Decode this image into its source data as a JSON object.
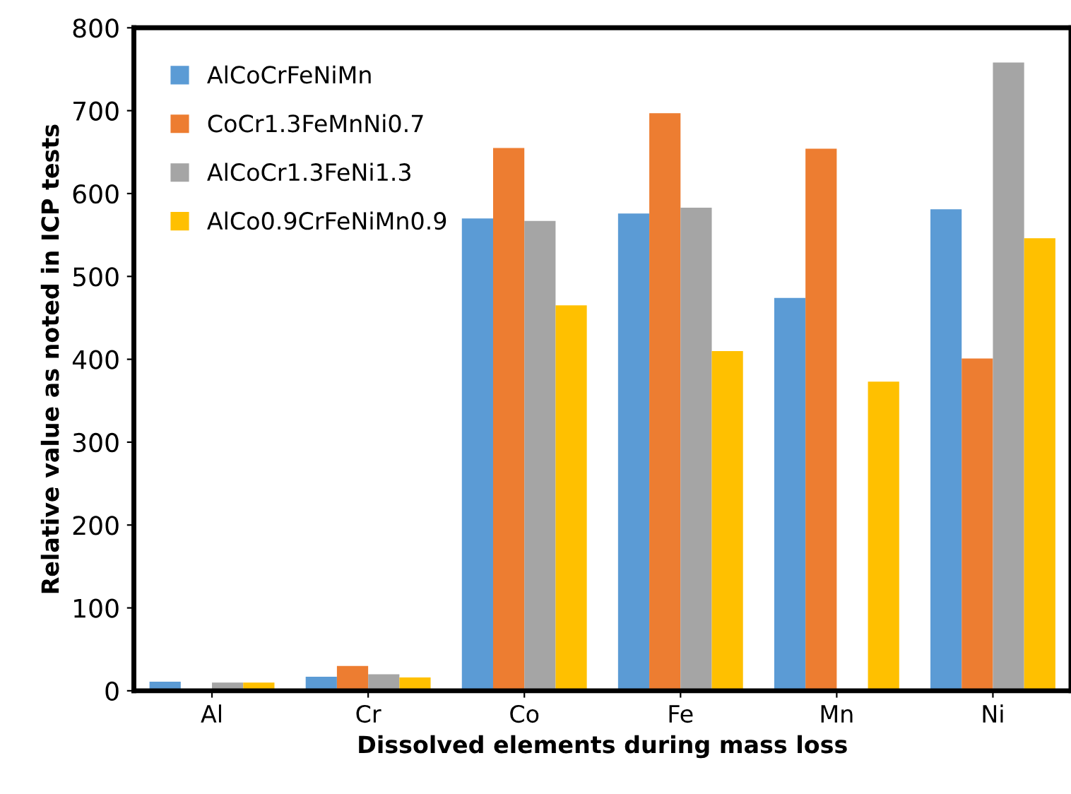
{
  "chart_data": {
    "type": "bar",
    "xlabel": "Dissolved elements during mass loss",
    "ylabel": "Relative value as noted in ICP tests",
    "categories": [
      "Al",
      "Cr",
      "Co",
      "Fe",
      "Mn",
      "Ni"
    ],
    "series": [
      {
        "name": "AlCoCrFeNiMn",
        "color": "#5b9bd5",
        "values": [
          11,
          17,
          570,
          576,
          474,
          581
        ]
      },
      {
        "name": "CoCr1.3FeMnNi0.7",
        "color": "#ed7d31",
        "values": [
          0,
          30,
          655,
          697,
          654,
          401
        ]
      },
      {
        "name": "AlCoCr1.3FeNi1.3",
        "color": "#a5a5a5",
        "values": [
          10,
          20,
          567,
          583,
          0,
          758
        ]
      },
      {
        "name": "AlCo0.9CrFeNiMn0.9",
        "color": "#ffc000",
        "values": [
          10,
          16,
          465,
          410,
          373,
          546
        ]
      }
    ],
    "ylim": [
      0,
      800
    ],
    "yticks": [
      0,
      100,
      200,
      300,
      400,
      500,
      600,
      700,
      800
    ],
    "grid": false,
    "legend": "top left"
  }
}
